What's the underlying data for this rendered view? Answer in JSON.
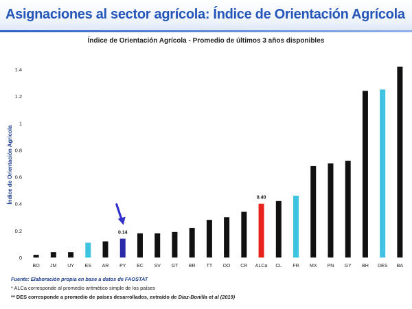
{
  "slide": {
    "title": "Asignaciones al sector agrícola: Índice de Orientación Agrícola"
  },
  "chart_data": {
    "type": "bar",
    "title": "Índice de Orientación Agrícola - Promedio de últimos 3 años disponibles",
    "ylabel": "Índice de Orientación Agrícola",
    "xlabel": "",
    "ylim": [
      0,
      1.4
    ],
    "yticks": [
      "0",
      "0.2",
      "0.4",
      "0.6",
      "0.8",
      "1",
      "1.2",
      "1.4"
    ],
    "grid": false,
    "categories": [
      "BO",
      "JM",
      "UY",
      "ES",
      "AR",
      "PY",
      "EC",
      "SV",
      "GT",
      "BR",
      "TT",
      "DO",
      "CR",
      "ALCa",
      "CL",
      "FR",
      "MX",
      "PN",
      "GY",
      "BH",
      "DES",
      "BA"
    ],
    "values": [
      0.02,
      0.04,
      0.04,
      0.11,
      0.12,
      0.14,
      0.18,
      0.18,
      0.19,
      0.22,
      0.28,
      0.3,
      0.34,
      0.4,
      0.42,
      0.46,
      0.68,
      0.7,
      0.72,
      1.24,
      1.25,
      1.42
    ],
    "colors": [
      "#111111",
      "#111111",
      "#111111",
      "#3ec3e0",
      "#111111",
      "#2a2aa8",
      "#111111",
      "#111111",
      "#111111",
      "#111111",
      "#111111",
      "#111111",
      "#111111",
      "#e8231e",
      "#111111",
      "#3ec3e0",
      "#111111",
      "#111111",
      "#111111",
      "#111111",
      "#3ec3e0",
      "#111111"
    ],
    "data_labels": [
      {
        "category": "PY",
        "text": "0.14"
      },
      {
        "category": "ALCa",
        "text": "0.40"
      }
    ],
    "annotations": [
      {
        "type": "arrow",
        "points_to": "PY",
        "color": "#3333cc",
        "icon": "down-arrow-icon"
      }
    ]
  },
  "footer": {
    "source": "Fuente: Elaboración propia en base a datos de FAOSTAT",
    "note1": "* ALCa corresponde al promedio aritmético simple de los países",
    "note2_prefix": "** DES corresponde a promedio de países desarrollados, extraído de ",
    "note2_ref": "Diaz-Bonilla et al (2019)"
  }
}
